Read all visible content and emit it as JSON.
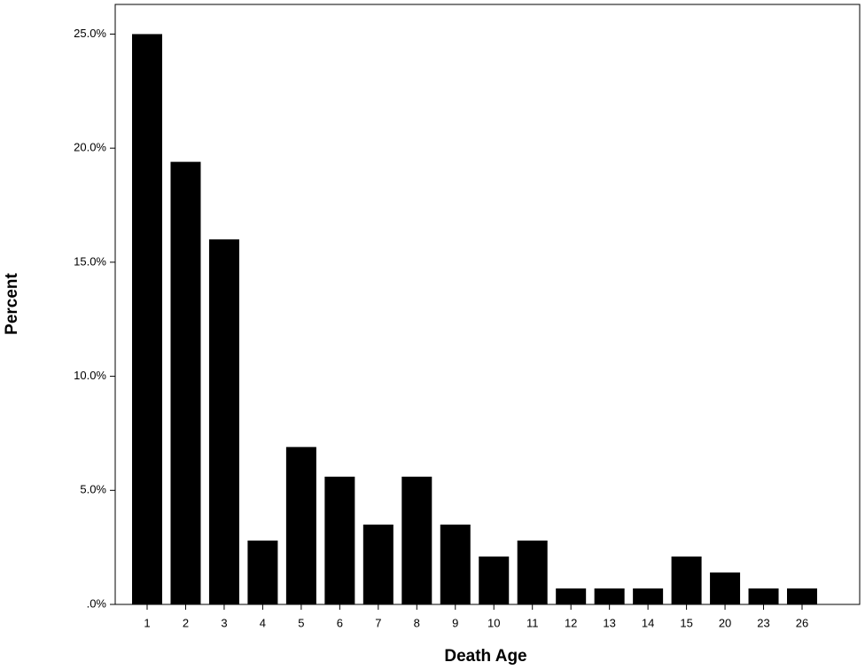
{
  "chart_data": {
    "type": "bar",
    "x_label": "Death Age",
    "y_label": "Percent",
    "categories": [
      "1",
      "2",
      "3",
      "4",
      "5",
      "6",
      "7",
      "8",
      "9",
      "10",
      "11",
      "12",
      "13",
      "14",
      "15",
      "20",
      "23",
      "26"
    ],
    "values": [
      25.0,
      19.4,
      16.0,
      2.8,
      6.9,
      5.6,
      3.5,
      5.6,
      3.5,
      2.1,
      2.8,
      0.7,
      0.7,
      0.7,
      2.1,
      1.4,
      0.7,
      0.7
    ],
    "color": "#000000",
    "ylim": [
      0,
      26.3
    ],
    "yticks": [
      {
        "value": 0,
        "label": ".0%"
      },
      {
        "value": 5,
        "label": "5.0%"
      },
      {
        "value": 10,
        "label": "10.0%"
      },
      {
        "value": 15,
        "label": "15.0%"
      },
      {
        "value": 20,
        "label": "20.0%"
      },
      {
        "value": 25,
        "label": "25.0%"
      }
    ],
    "grid": false
  }
}
